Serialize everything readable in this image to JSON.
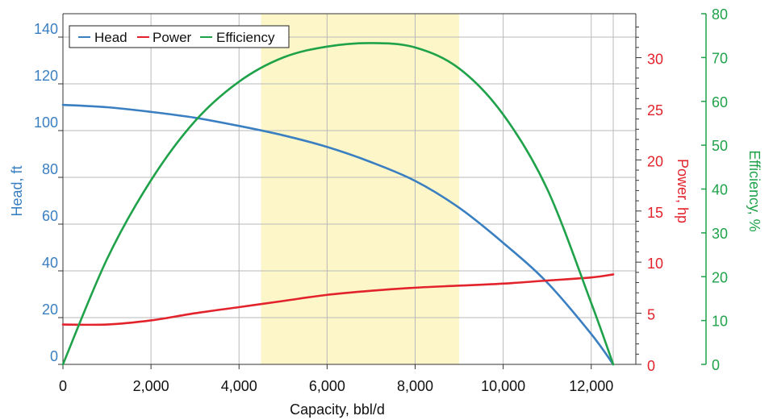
{
  "chart_data": {
    "type": "line",
    "x": [
      0,
      1000,
      2000,
      3000,
      4000,
      5000,
      6000,
      7000,
      8000,
      9000,
      10000,
      11000,
      12000,
      12500
    ],
    "x_ticks": [
      0,
      2000,
      4000,
      6000,
      8000,
      10000,
      12000
    ],
    "x_tick_labels": [
      "0",
      "2,000",
      "4,000",
      "6,000",
      "8,000",
      "10,000",
      "12,000"
    ],
    "xlim": [
      0,
      12500
    ],
    "xlabel": "Capacity, bbl/d",
    "series": [
      {
        "name": "Head",
        "axis": "left",
        "color": "#3a7fc1",
        "values": [
          111,
          110,
          108,
          105.5,
          102,
          98,
          93,
          86.5,
          78.5,
          67,
          52,
          35,
          13,
          0
        ]
      },
      {
        "name": "Power",
        "axis": "right1",
        "color": "#e3232c",
        "values": [
          3.9,
          3.9,
          4.3,
          5.0,
          5.6,
          6.2,
          6.8,
          7.2,
          7.5,
          7.7,
          7.9,
          8.2,
          8.5,
          8.8
        ]
      },
      {
        "name": "Efficiency",
        "axis": "right2",
        "color": "#1fa24a",
        "values": [
          0,
          24,
          42,
          55.5,
          64.5,
          70,
          72.5,
          73.3,
          72.3,
          67.5,
          57,
          40,
          14,
          0
        ]
      }
    ],
    "axes": {
      "left": {
        "label": "Head, ft",
        "ticks": [
          0,
          20,
          40,
          60,
          80,
          100,
          120,
          140
        ],
        "ylim": [
          0,
          150
        ],
        "color": "#3a7fc1"
      },
      "right1": {
        "label": "Power, hp",
        "ticks": [
          0,
          5,
          10,
          15,
          20,
          25,
          30
        ],
        "ylim": [
          0,
          34.3
        ],
        "color": "#e3232c"
      },
      "right2": {
        "label": "Efficiency, %",
        "ticks": [
          0,
          10,
          20,
          30,
          40,
          50,
          60,
          70,
          80
        ],
        "ylim": [
          0,
          80
        ],
        "color": "#1fa24a"
      }
    },
    "highlight_band": {
      "x_start": 4500,
      "x_end": 9000,
      "color": "#fcf6c8"
    },
    "legend": {
      "placement": "top-left",
      "entries": [
        "Head",
        "Power",
        "Efficiency"
      ]
    },
    "grid": true
  }
}
